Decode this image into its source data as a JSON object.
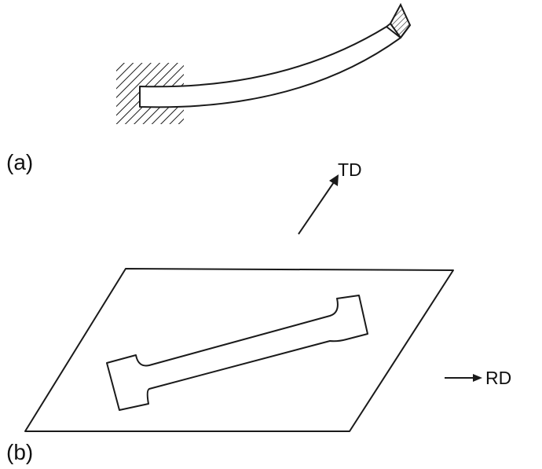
{
  "panels": {
    "a": {
      "label": "(a)"
    },
    "b": {
      "label": "(b)"
    }
  },
  "directions": {
    "td": {
      "label": "TD"
    },
    "rd": {
      "label": "RD"
    }
  },
  "colors": {
    "stroke": "#1a1a1a",
    "background": "#ffffff"
  }
}
